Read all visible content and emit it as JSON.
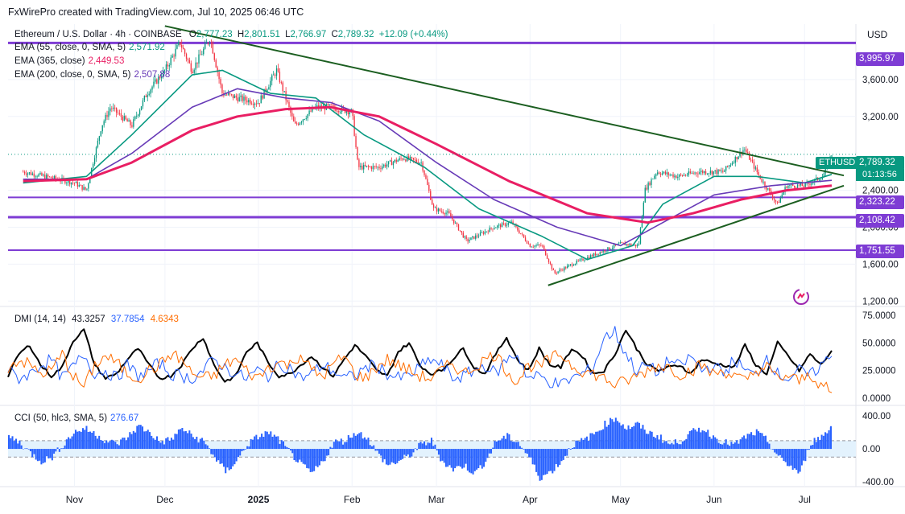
{
  "header": {
    "credit": "FxWirePro created with TradingView.com, Jul 10, 2025 06:46 UTC"
  },
  "legend": {
    "symbol": "Ethereum / U.S. Dollar · 4h · COINBASE",
    "ohlc": [
      {
        "k": "O",
        "v": "2,777.23"
      },
      {
        "k": "H",
        "v": "2,801.51"
      },
      {
        "k": "L",
        "v": "2,766.97"
      },
      {
        "k": "C",
        "v": "2,789.32"
      }
    ],
    "change": "+12.09 (+0.44%)",
    "ema55": {
      "label": "EMA (55, close, 0, SMA, 5)",
      "value": "2,571.92",
      "color": "#089981"
    },
    "ema365": {
      "label": "EMA (365, close)",
      "value": "2,449.53",
      "color": "#e91e63"
    },
    "ema200": {
      "label": "EMA (200, close, 0, SMA, 5)",
      "value": "2,507.88",
      "color": "#673ab7"
    },
    "dmi": {
      "label": "DMI (14, 14)",
      "values": [
        "43.3257",
        "37.7854",
        "4.6343"
      ],
      "colors": [
        "#000000",
        "#2962ff",
        "#ff6d00"
      ]
    },
    "cci": {
      "label": "CCI (50, hlc3, SMA, 5)",
      "value": "276.67",
      "color": "#2962ff"
    }
  },
  "price_axis": {
    "currency": "USD"
  },
  "ticker": {
    "symbol": "ETHUSD",
    "price": "2,789.32",
    "countdown": "01:13:56"
  },
  "level_badges": [
    "3,995.97",
    "2,323.22",
    "2,108.42",
    "1,751.55"
  ],
  "colors": {
    "up": "#089981",
    "down": "#f23645",
    "level": "#7e3cd4",
    "trend": "#1b5e20",
    "ema55": "#089981",
    "ema200": "#673ab7",
    "ema365": "#e91e63"
  },
  "chart_data": [
    {
      "type": "candlestick",
      "panel": "price",
      "x_ticks": [
        "Nov",
        "Dec",
        "2025",
        "Feb",
        "Mar",
        "Apr",
        "May",
        "Jun",
        "Jul"
      ],
      "y_ticks": [
        "3,600.00",
        "3,200.00",
        "2,400.00",
        "2,000.00",
        "1,600.00",
        "1,200.00"
      ],
      "y_tick_values": [
        3600,
        3200,
        2400,
        2000,
        1600,
        1200
      ],
      "ylim": [
        1150,
        4200
      ],
      "horizontal_levels": [
        3995.97,
        2323.22,
        2108.42,
        1751.55
      ],
      "trendlines": [
        {
          "from": [
            "2024-12-01",
            4180
          ],
          "to": [
            "2025-07-14",
            2560
          ]
        },
        {
          "from": [
            "2025-04-07",
            1370
          ],
          "to": [
            "2025-07-14",
            2450
          ]
        }
      ],
      "price_path": [
        [
          "2024-10-15",
          2600
        ],
        [
          "2024-10-25",
          2530
        ],
        [
          "2024-11-01",
          2480
        ],
        [
          "2024-11-05",
          2400
        ],
        [
          "2024-11-10",
          3100
        ],
        [
          "2024-11-13",
          3300
        ],
        [
          "2024-11-20",
          3100
        ],
        [
          "2024-11-25",
          3450
        ],
        [
          "2024-12-01",
          3700
        ],
        [
          "2024-12-06",
          4000
        ],
        [
          "2024-12-10",
          3700
        ],
        [
          "2024-12-16",
          4050
        ],
        [
          "2024-12-20",
          3450
        ],
        [
          "2024-12-25",
          3400
        ],
        [
          "2025-01-01",
          3350
        ],
        [
          "2025-01-07",
          3700
        ],
        [
          "2025-01-13",
          3100
        ],
        [
          "2025-01-20",
          3300
        ],
        [
          "2025-01-25",
          3300
        ],
        [
          "2025-02-01",
          3250
        ],
        [
          "2025-02-03",
          2650
        ],
        [
          "2025-02-10",
          2650
        ],
        [
          "2025-02-18",
          2750
        ],
        [
          "2025-02-24",
          2700
        ],
        [
          "2025-02-28",
          2200
        ],
        [
          "2025-03-05",
          2150
        ],
        [
          "2025-03-11",
          1850
        ],
        [
          "2025-03-20",
          2000
        ],
        [
          "2025-03-26",
          2050
        ],
        [
          "2025-04-01",
          1800
        ],
        [
          "2025-04-05",
          1800
        ],
        [
          "2025-04-09",
          1500
        ],
        [
          "2025-04-15",
          1600
        ],
        [
          "2025-04-22",
          1700
        ],
        [
          "2025-05-01",
          1820
        ],
        [
          "2025-05-07",
          1800
        ],
        [
          "2025-05-09",
          2400
        ],
        [
          "2025-05-13",
          2600
        ],
        [
          "2025-05-20",
          2550
        ],
        [
          "2025-05-27",
          2600
        ],
        [
          "2025-06-04",
          2600
        ],
        [
          "2025-06-11",
          2850
        ],
        [
          "2025-06-16",
          2550
        ],
        [
          "2025-06-22",
          2250
        ],
        [
          "2025-06-25",
          2450
        ],
        [
          "2025-07-01",
          2450
        ],
        [
          "2025-07-07",
          2550
        ],
        [
          "2025-07-10",
          2789
        ]
      ],
      "series": [
        {
          "name": "EMA (55, close, 0, SMA, 5)",
          "color": "#089981",
          "values": [
            [
              "2024-10-15",
              2480
            ],
            [
              "2024-11-05",
              2550
            ],
            [
              "2024-11-20",
              3000
            ],
            [
              "2024-12-10",
              3650
            ],
            [
              "2024-12-20",
              3700
            ],
            [
              "2025-01-05",
              3450
            ],
            [
              "2025-01-20",
              3400
            ],
            [
              "2025-02-05",
              3000
            ],
            [
              "2025-02-25",
              2650
            ],
            [
              "2025-03-15",
              2200
            ],
            [
              "2025-04-05",
              1900
            ],
            [
              "2025-04-20",
              1650
            ],
            [
              "2025-05-05",
              1800
            ],
            [
              "2025-05-15",
              2250
            ],
            [
              "2025-06-01",
              2550
            ],
            [
              "2025-06-15",
              2550
            ],
            [
              "2025-07-01",
              2480
            ],
            [
              "2025-07-10",
              2572
            ]
          ]
        },
        {
          "name": "EMA (200, close, 0, SMA, 5)",
          "color": "#673ab7",
          "values": [
            [
              "2024-10-15",
              2520
            ],
            [
              "2024-11-05",
              2520
            ],
            [
              "2024-11-20",
              2800
            ],
            [
              "2024-12-10",
              3300
            ],
            [
              "2024-12-25",
              3500
            ],
            [
              "2025-01-10",
              3400
            ],
            [
              "2025-01-25",
              3350
            ],
            [
              "2025-02-10",
              3150
            ],
            [
              "2025-03-01",
              2700
            ],
            [
              "2025-03-20",
              2300
            ],
            [
              "2025-04-10",
              2000
            ],
            [
              "2025-05-01",
              1800
            ],
            [
              "2025-05-15",
              2050
            ],
            [
              "2025-06-01",
              2350
            ],
            [
              "2025-06-20",
              2450
            ],
            [
              "2025-07-10",
              2508
            ]
          ]
        },
        {
          "name": "EMA (365, close)",
          "color": "#e91e63",
          "values": [
            [
              "2024-10-15",
              2500
            ],
            [
              "2024-11-05",
              2520
            ],
            [
              "2024-11-20",
              2700
            ],
            [
              "2024-12-10",
              3050
            ],
            [
              "2024-12-25",
              3200
            ],
            [
              "2025-01-10",
              3280
            ],
            [
              "2025-01-25",
              3300
            ],
            [
              "2025-02-10",
              3200
            ],
            [
              "2025-03-01",
              2900
            ],
            [
              "2025-03-25",
              2500
            ],
            [
              "2025-04-20",
              2150
            ],
            [
              "2025-05-10",
              2050
            ],
            [
              "2025-05-25",
              2150
            ],
            [
              "2025-06-10",
              2300
            ],
            [
              "2025-06-25",
              2400
            ],
            [
              "2025-07-10",
              2450
            ]
          ]
        }
      ]
    },
    {
      "type": "line",
      "panel": "DMI (14, 14)",
      "y_ticks": [
        "75.0000",
        "50.0000",
        "25.0000",
        "0.0000"
      ],
      "y_tick_values": [
        75,
        50,
        25,
        0
      ],
      "ylim": [
        0,
        75
      ],
      "series": [
        {
          "color": "#000000",
          "values": [
            20,
            40,
            48,
            30,
            20,
            28,
            52,
            62,
            30,
            18,
            22,
            35,
            45,
            30,
            18,
            20,
            30,
            45,
            55,
            30,
            15,
            20,
            42,
            50,
            32,
            20,
            22,
            30,
            38,
            28,
            20,
            35,
            48,
            38,
            25,
            20,
            42,
            50,
            30,
            22,
            25,
            35,
            45,
            28,
            22,
            40,
            55,
            35,
            25,
            45,
            30,
            28,
            45,
            38,
            22,
            25,
            40,
            62,
            45,
            30,
            25,
            28,
            30,
            22,
            35,
            32,
            30,
            28,
            48,
            30,
            22,
            50,
            38,
            25,
            40,
            30,
            43
          ]
        },
        {
          "color": "#2962ff",
          "values": [
            25,
            18,
            22,
            30,
            35,
            18,
            28,
            40,
            22,
            25,
            18,
            30,
            20,
            25,
            32,
            22,
            20,
            18,
            25,
            35,
            28,
            22,
            18,
            25,
            20,
            30,
            28,
            18,
            22,
            30,
            25,
            18,
            20,
            28,
            30,
            22,
            18,
            20,
            28,
            35,
            30,
            18,
            20,
            25,
            30,
            22,
            35,
            40,
            18,
            20,
            15,
            12,
            18,
            22,
            28,
            55,
            60,
            40,
            25,
            30,
            22,
            35,
            28,
            38,
            25,
            30,
            22,
            35,
            25,
            20,
            38,
            22,
            18,
            25,
            20,
            30,
            38
          ]
        },
        {
          "color": "#ff6d00",
          "values": [
            28,
            35,
            30,
            22,
            25,
            40,
            20,
            10,
            30,
            38,
            32,
            22,
            18,
            25,
            30,
            40,
            35,
            22,
            18,
            20,
            30,
            35,
            25,
            18,
            28,
            32,
            30,
            40,
            25,
            20,
            30,
            38,
            22,
            18,
            28,
            35,
            30,
            25,
            20,
            18,
            25,
            32,
            22,
            28,
            35,
            40,
            25,
            15,
            30,
            28,
            35,
            40,
            30,
            25,
            22,
            18,
            12,
            15,
            20,
            25,
            30,
            28,
            22,
            25,
            30,
            22,
            25,
            20,
            15,
            25,
            28,
            18,
            20,
            15,
            22,
            12,
            5
          ]
        }
      ]
    },
    {
      "type": "histogram",
      "panel": "CCI (50, hlc3, SMA, 5)",
      "y_ticks": [
        "400.00",
        "0.00",
        "-400.00"
      ],
      "y_tick_values": [
        400,
        0,
        -400
      ],
      "ylim": [
        -450,
        520
      ],
      "band": [
        100,
        -100
      ],
      "series": [
        {
          "color": "#2962ff",
          "values": [
            150,
            80,
            -50,
            -150,
            -100,
            50,
            200,
            250,
            180,
            100,
            60,
            150,
            280,
            200,
            80,
            120,
            250,
            150,
            90,
            -100,
            -280,
            -150,
            50,
            150,
            200,
            100,
            -50,
            -200,
            -300,
            -150,
            80,
            100,
            200,
            150,
            -50,
            -200,
            -150,
            -80,
            50,
            100,
            -150,
            -250,
            -200,
            -300,
            -150,
            100,
            150,
            80,
            -100,
            -350,
            -280,
            -150,
            50,
            100,
            180,
            300,
            380,
            250,
            300,
            200,
            150,
            50,
            100,
            200,
            250,
            150,
            80,
            50,
            150,
            200,
            100,
            -100,
            -200,
            -300,
            80,
            150,
            277
          ]
        }
      ]
    }
  ]
}
